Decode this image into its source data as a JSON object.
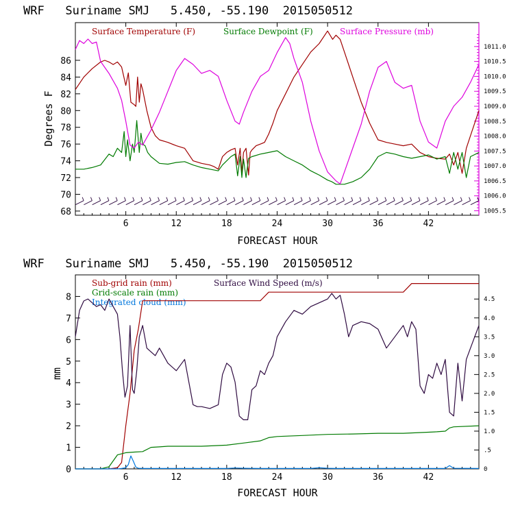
{
  "chart_data": [
    {
      "type": "line",
      "title": "WRF   Suriname SMJ   5.450, -55.190  2015050512",
      "xlabel": "FORECAST HOUR",
      "ylabel": "Degrees F",
      "xlim": [
        0,
        48
      ],
      "ylim": [
        67.5,
        90.5
      ],
      "x_ticks": [
        6,
        12,
        18,
        24,
        30,
        36,
        42
      ],
      "y_ticks": [
        68,
        70,
        72,
        74,
        76,
        78,
        80,
        82,
        84,
        86
      ],
      "y2lim": [
        1005.35,
        1011.8
      ],
      "y2_ticks": [
        "1005.5",
        "1006.0",
        "1006.5",
        "1007.0",
        "1007.5",
        "1008.0",
        "1008.5",
        "1009.0",
        "1009.5",
        "1010.0",
        "1010.5",
        "1011.0"
      ],
      "legend_placement": "top",
      "grid": false,
      "wind_barbs_y": 69,
      "series": [
        {
          "name": "Surface Temperature (F)",
          "color": "#a00000",
          "axis": "left",
          "x": [
            0,
            1,
            2,
            3,
            3.5,
            4,
            4.5,
            5,
            5.5,
            6,
            6.3,
            6.6,
            7,
            7.2,
            7.4,
            7.6,
            7.8,
            8,
            8.5,
            9,
            9.5,
            10,
            11,
            12,
            13,
            14,
            15,
            16,
            16.5,
            17,
            17.5,
            18,
            18.5,
            19,
            19.3,
            19.6,
            19.8,
            20,
            20.3,
            20.6,
            20.8,
            21,
            21.5,
            22,
            22.5,
            23,
            23.5,
            24,
            25,
            26,
            27,
            28,
            29,
            30,
            30.3,
            30.6,
            31,
            31.5,
            32,
            33,
            34,
            35,
            36,
            37,
            38,
            39,
            40,
            41,
            42,
            43,
            44,
            44.5,
            45,
            45.5,
            46,
            46.5,
            47,
            48
          ],
          "y": [
            82.5,
            84,
            85,
            85.8,
            86,
            85.8,
            85.5,
            85.8,
            85.2,
            83,
            84.5,
            81,
            80.7,
            80.5,
            84,
            81,
            83.2,
            82.5,
            80,
            78,
            77,
            76.5,
            76.2,
            75.8,
            75.5,
            74,
            73.7,
            73.5,
            73.3,
            73,
            74.5,
            75,
            75.3,
            75.5,
            73.5,
            75.5,
            72.5,
            75,
            75.5,
            72.3,
            75,
            75.3,
            75.8,
            76,
            76.2,
            77.2,
            78.5,
            80,
            82,
            84,
            85.5,
            87,
            88,
            89.5,
            89,
            88.5,
            89,
            88.5,
            87,
            84,
            81,
            78.5,
            76.5,
            76.2,
            76,
            75.8,
            76,
            75,
            74.5,
            74.3,
            74.2,
            74.8,
            73.5,
            75,
            72.5,
            75.5,
            77,
            80
          ]
        },
        {
          "name": "Surface Dewpoint (F)",
          "color": "#007a00",
          "axis": "left",
          "x": [
            0,
            1,
            2,
            3,
            4,
            4.5,
            5,
            5.5,
            5.8,
            6,
            6.2,
            6.5,
            6.8,
            7,
            7.3,
            7.6,
            7.8,
            8,
            8.3,
            8.6,
            9,
            10,
            11,
            12,
            13,
            14,
            15,
            16,
            17,
            17.5,
            18,
            18.5,
            19,
            19.3,
            19.6,
            19.8,
            20,
            20.3,
            20.6,
            21,
            22,
            23,
            24,
            25,
            26,
            27,
            28,
            29,
            30,
            30.5,
            31,
            32,
            33,
            34,
            35,
            36,
            37,
            38,
            39,
            40,
            41,
            42,
            43,
            44,
            44.5,
            45,
            45.5,
            46,
            46.5,
            47,
            48
          ],
          "y": [
            73,
            73,
            73.2,
            73.5,
            74.8,
            74.5,
            75.5,
            75,
            77.5,
            74.5,
            76.5,
            74,
            76,
            75,
            78.8,
            75,
            77.3,
            76,
            75.8,
            75,
            74.5,
            73.7,
            73.6,
            73.8,
            73.9,
            73.5,
            73.2,
            73,
            72.8,
            73.5,
            74,
            74.5,
            74.8,
            72.2,
            74.5,
            72,
            74.2,
            72,
            74.3,
            74.5,
            74.8,
            75,
            75.2,
            74.5,
            74,
            73.5,
            72.8,
            72.3,
            71.7,
            71.5,
            71.2,
            71.2,
            71.5,
            72,
            73,
            74.5,
            75,
            74.8,
            74.5,
            74.3,
            74.5,
            74.7,
            74.2,
            74.5,
            72.5,
            75,
            73,
            75,
            72,
            74.5,
            75
          ]
        },
        {
          "name": "Surface Pressure (mb)",
          "color": "#dd00dd",
          "axis": "right",
          "x": [
            0,
            0.5,
            1,
            1.5,
            2,
            2.5,
            3,
            4,
            5,
            5.5,
            6,
            6.5,
            7,
            7.5,
            8,
            9,
            10,
            11,
            12,
            12.5,
            13,
            14,
            15,
            16,
            17,
            18,
            19,
            19.5,
            20,
            21,
            22,
            23,
            24,
            25,
            25.5,
            26,
            27,
            28,
            29,
            30,
            31,
            31.5,
            32,
            33,
            34,
            35,
            36,
            37,
            38,
            39,
            40,
            41,
            42,
            43,
            44,
            45,
            46,
            47,
            48
          ],
          "y": [
            1010.9,
            1011.2,
            1011.1,
            1011.25,
            1011.1,
            1011.15,
            1010.5,
            1010.1,
            1009.6,
            1009.2,
            1008.5,
            1007.7,
            1007.6,
            1007.8,
            1007.7,
            1008.2,
            1008.8,
            1009.5,
            1010.2,
            1010.4,
            1010.6,
            1010.4,
            1010.1,
            1010.2,
            1010,
            1009.2,
            1008.5,
            1008.4,
            1008.8,
            1009.5,
            1010,
            1010.2,
            1010.8,
            1011.3,
            1011.1,
            1010.6,
            1009.8,
            1008.5,
            1007.5,
            1006.8,
            1006.5,
            1006.4,
            1006.8,
            1007.6,
            1008.4,
            1009.5,
            1010.3,
            1010.5,
            1009.8,
            1009.6,
            1009.7,
            1008.5,
            1007.8,
            1007.6,
            1008.5,
            1009,
            1009.3,
            1009.8,
            1010.4
          ]
        }
      ]
    },
    {
      "type": "line",
      "title": "WRF   Suriname SMJ   5.450, -55.190  2015050512",
      "xlabel": "FORECAST HOUR",
      "ylabel": "mm",
      "xlim": [
        0,
        48
      ],
      "ylim": [
        0,
        9
      ],
      "x_ticks": [
        6,
        12,
        18,
        24,
        30,
        36,
        42
      ],
      "y_ticks": [
        0,
        1,
        2,
        3,
        4,
        5,
        6,
        7,
        8
      ],
      "y2lim": [
        0,
        5.14
      ],
      "y2_ticks": [
        "0",
        ".5",
        "1.0",
        "1.5",
        "2.0",
        "2.5",
        "3.0",
        "3.5",
        "4.0",
        "4.5"
      ],
      "legend_placement": "top-left",
      "grid": false,
      "series": [
        {
          "name": "Sub-grid rain (mm)",
          "color": "#a00000",
          "axis": "left",
          "x": [
            0,
            4,
            5,
            5.5,
            6,
            6.5,
            7,
            7.5,
            8,
            9,
            10,
            15,
            20,
            22,
            23,
            24,
            30,
            38,
            39,
            39.5,
            40,
            41,
            45,
            48
          ],
          "y": [
            0,
            0,
            0.05,
            0.3,
            2,
            3.5,
            5.5,
            6.5,
            7.8,
            7.8,
            7.8,
            7.8,
            7.8,
            7.8,
            8.2,
            8.2,
            8.2,
            8.2,
            8.2,
            8.4,
            8.6,
            8.6,
            8.6,
            8.6
          ]
        },
        {
          "name": "Surface Wind Speed (m/s)",
          "color": "#2e0a40",
          "axis": "right",
          "x": [
            0,
            0.5,
            1,
            1.5,
            2,
            2.5,
            3,
            3.5,
            4,
            4.5,
            5,
            5.3,
            5.6,
            5.9,
            6.2,
            6.5,
            6.8,
            7,
            7.3,
            7.6,
            8,
            8.5,
            9,
            9.5,
            10,
            11,
            12,
            13,
            14,
            14.5,
            15,
            16,
            17,
            17.5,
            18,
            18.5,
            19,
            19.5,
            20,
            20.5,
            21,
            21.5,
            22,
            22.5,
            23,
            23.5,
            24,
            25,
            26,
            27,
            28,
            29,
            30,
            30.5,
            31,
            31.5,
            32,
            32.5,
            33,
            34,
            35,
            36,
            37,
            38,
            39,
            39.5,
            40,
            40.5,
            41,
            41.5,
            42,
            42.5,
            43,
            43.5,
            44,
            44.5,
            45,
            45.5,
            46,
            46.5,
            47,
            48
          ],
          "y": [
            3.5,
            4.2,
            4.45,
            4.5,
            4.4,
            4.3,
            4.35,
            4.2,
            4.5,
            4.3,
            4.1,
            3.5,
            2.6,
            1.9,
            2.2,
            3.8,
            2.1,
            2,
            2.6,
            3.5,
            3.8,
            3.2,
            3.1,
            3,
            3.2,
            2.8,
            2.6,
            2.9,
            1.7,
            1.65,
            1.65,
            1.6,
            1.7,
            2.5,
            2.8,
            2.7,
            2.3,
            1.4,
            1.3,
            1.3,
            2.1,
            2.2,
            2.6,
            2.5,
            2.8,
            3,
            3.5,
            3.9,
            4.2,
            4.1,
            4.3,
            4.4,
            4.5,
            4.65,
            4.5,
            4.6,
            4.1,
            3.5,
            3.8,
            3.9,
            3.85,
            3.7,
            3.2,
            3.5,
            3.8,
            3.5,
            3.9,
            3.7,
            2.2,
            2,
            2.5,
            2.4,
            2.8,
            2.5,
            2.9,
            1.5,
            1.4,
            2.8,
            1.8,
            2.9,
            3.2,
            3.8
          ]
        },
        {
          "name": "Grid-scale rain (mm)",
          "color": "#007a00",
          "axis": "left",
          "x": [
            0,
            3,
            4,
            5,
            6,
            7,
            8,
            9,
            10,
            11,
            12,
            15,
            18,
            20,
            22,
            23,
            24,
            27,
            30,
            33,
            36,
            39,
            42,
            43,
            44,
            44.5,
            45,
            48
          ],
          "y": [
            0,
            0,
            0.1,
            0.65,
            0.75,
            0.78,
            0.8,
            1,
            1.02,
            1.05,
            1.05,
            1.05,
            1.1,
            1.2,
            1.3,
            1.45,
            1.5,
            1.55,
            1.6,
            1.62,
            1.65,
            1.65,
            1.7,
            1.72,
            1.75,
            1.9,
            1.95,
            2
          ]
        },
        {
          "name": "Integrated cloud (mm)",
          "color": "#0077dd",
          "axis": "left",
          "x": [
            0,
            5,
            5.5,
            6,
            6.3,
            6.6,
            6.9,
            7.2,
            7.5,
            8,
            10,
            14,
            18,
            19,
            20,
            22,
            24,
            28,
            29,
            30,
            31,
            35,
            40,
            44,
            44.5,
            45,
            48
          ],
          "y": [
            0,
            0,
            0.02,
            0.05,
            0.2,
            0.6,
            0.35,
            0.08,
            0.03,
            0.02,
            0.02,
            0.02,
            0.02,
            0.04,
            0.03,
            0.02,
            0.02,
            0.02,
            0.05,
            0.03,
            0.02,
            0.02,
            0.02,
            0.02,
            0.15,
            0.03,
            0.02
          ]
        }
      ]
    }
  ]
}
